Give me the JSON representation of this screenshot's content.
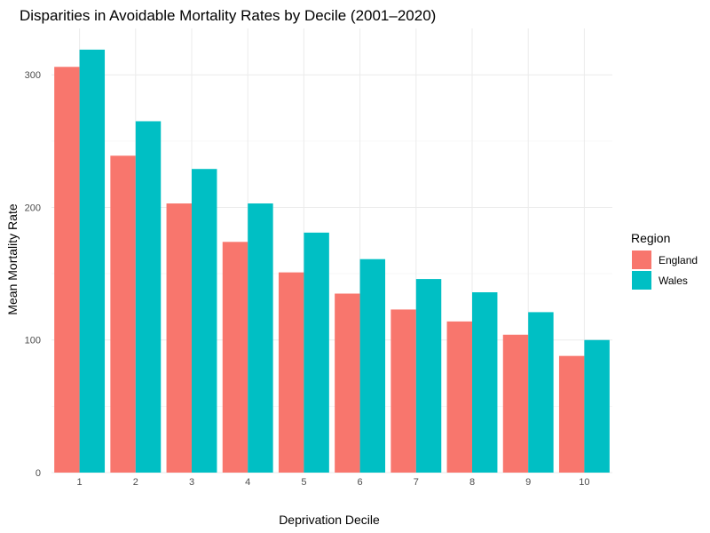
{
  "chart_data": {
    "type": "bar",
    "title": "Disparities in Avoidable Mortality Rates by Decile (2001–2020)",
    "xlabel": "Deprivation Decile",
    "ylabel": "Mean Mortality Rate",
    "categories": [
      "1",
      "2",
      "3",
      "4",
      "5",
      "6",
      "7",
      "8",
      "9",
      "10"
    ],
    "series": [
      {
        "name": "England",
        "color": "#F8766D",
        "values": [
          306,
          239,
          203,
          174,
          151,
          135,
          123,
          114,
          104,
          88
        ]
      },
      {
        "name": "Wales",
        "color": "#00BFC4",
        "values": [
          319,
          265,
          229,
          203,
          181,
          161,
          146,
          136,
          121,
          100
        ]
      }
    ],
    "ylim": [
      0,
      335
    ],
    "yticks": [
      0,
      100,
      200,
      300
    ],
    "grid": true,
    "legend": {
      "title": "Region",
      "position": "right"
    }
  }
}
